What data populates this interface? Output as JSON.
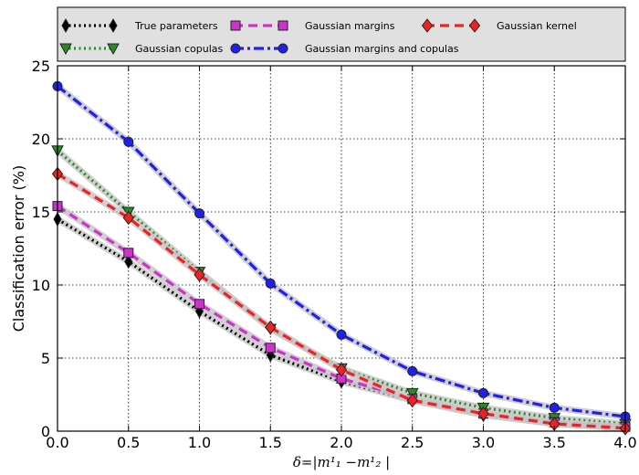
{
  "chart_data": {
    "type": "line",
    "xlabel": "δ=|m¹₁ −m¹₂ |",
    "ylabel": "Classification error (%)",
    "xlim": [
      0.0,
      4.0
    ],
    "ylim": [
      0,
      25
    ],
    "x_ticks": [
      "0.0",
      "0.5",
      "1.0",
      "1.5",
      "2.0",
      "2.5",
      "3.0",
      "3.5",
      "4.0"
    ],
    "y_ticks": [
      "0",
      "5",
      "10",
      "15",
      "20",
      "25"
    ],
    "grid": true,
    "legend_position": "top",
    "x": [
      0.0,
      0.5,
      1.0,
      1.5,
      2.0,
      2.5,
      3.0,
      3.5,
      4.0
    ],
    "series": [
      {
        "name": "True parameters",
        "color": "#000000",
        "marker": "thin-diamond",
        "linestyle": "dotted",
        "values": [
          14.5,
          11.6,
          8.2,
          5.2,
          3.4,
          2.1,
          1.1,
          0.5,
          0.2
        ]
      },
      {
        "name": "Gaussian copulas",
        "color": "#2a8a2a",
        "marker": "triangle-down",
        "linestyle": "dotted",
        "values": [
          19.2,
          15.0,
          10.9,
          7.0,
          4.3,
          2.6,
          1.6,
          0.9,
          0.5
        ]
      },
      {
        "name": "Gaussian margins",
        "color": "#cc33cc",
        "marker": "square",
        "linestyle": "dashed",
        "values": [
          15.4,
          12.2,
          8.7,
          5.7,
          3.6,
          2.2,
          1.2,
          0.6,
          0.3
        ]
      },
      {
        "name": "Gaussian margins and copulas",
        "color": "#1f1fee",
        "marker": "circle",
        "linestyle": "dashdot",
        "values": [
          23.6,
          19.8,
          14.9,
          10.1,
          6.6,
          4.1,
          2.6,
          1.6,
          1.0
        ]
      },
      {
        "name": "Gaussian kernel",
        "color": "#ee2222",
        "marker": "diamond",
        "linestyle": "dashed",
        "values": [
          17.6,
          14.6,
          10.7,
          7.1,
          4.2,
          2.1,
          1.2,
          0.5,
          0.2
        ]
      }
    ]
  }
}
